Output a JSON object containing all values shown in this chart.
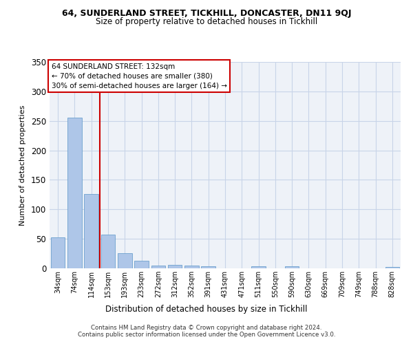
{
  "title1": "64, SUNDERLAND STREET, TICKHILL, DONCASTER, DN11 9QJ",
  "title2": "Size of property relative to detached houses in Tickhill",
  "xlabel": "Distribution of detached houses by size in Tickhill",
  "ylabel": "Number of detached properties",
  "categories": [
    "34sqm",
    "74sqm",
    "114sqm",
    "153sqm",
    "193sqm",
    "233sqm",
    "272sqm",
    "312sqm",
    "352sqm",
    "391sqm",
    "431sqm",
    "471sqm",
    "511sqm",
    "550sqm",
    "590sqm",
    "630sqm",
    "669sqm",
    "709sqm",
    "749sqm",
    "788sqm",
    "828sqm"
  ],
  "values": [
    52,
    256,
    126,
    57,
    26,
    13,
    5,
    6,
    5,
    3,
    0,
    0,
    4,
    0,
    3,
    0,
    0,
    0,
    0,
    0,
    2
  ],
  "bar_color": "#aec6e8",
  "bar_edge_color": "#5a96c8",
  "vline_x_index": 2,
  "vline_color": "#cc0000",
  "annotation_lines": [
    "64 SUNDERLAND STREET: 132sqm",
    "← 70% of detached houses are smaller (380)",
    "30% of semi-detached houses are larger (164) →"
  ],
  "annotation_box_color": "#cc0000",
  "ylim": [
    0,
    350
  ],
  "yticks": [
    0,
    50,
    100,
    150,
    200,
    250,
    300,
    350
  ],
  "grid_color": "#c8d4e8",
  "bg_color": "#eef2f8",
  "footer1": "Contains HM Land Registry data © Crown copyright and database right 2024.",
  "footer2": "Contains public sector information licensed under the Open Government Licence v3.0."
}
